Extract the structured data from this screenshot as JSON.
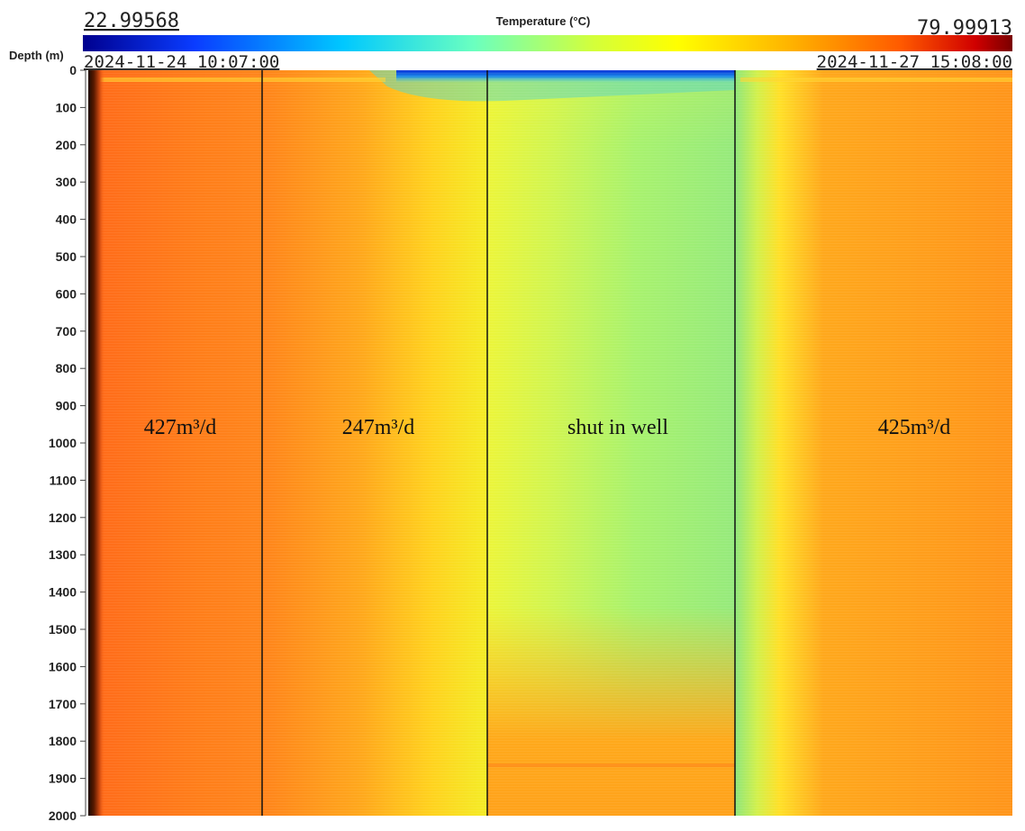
{
  "colorbar": {
    "title": "Temperature (°C)",
    "min_label": "22.99568",
    "max_label": "79.99913",
    "min_value": 22.99568,
    "max_value": 79.99913,
    "colormap": [
      "#00008f",
      "#0040ff",
      "#00c0ff",
      "#60ffb0",
      "#c0ff40",
      "#ffff00",
      "#ffc000",
      "#ff6000",
      "#e00000",
      "#7a0000"
    ]
  },
  "time_axis": {
    "start_label": "2024-11-24 10:07:00",
    "end_label": "2024-11-27 15:08:00"
  },
  "chart_data": {
    "type": "heatmap",
    "title": "",
    "xlabel": "",
    "ylabel": "Depth (m)",
    "x_range": [
      "2024-11-24 10:07:00",
      "2024-11-27 15:08:00"
    ],
    "y_range": [
      0,
      2000
    ],
    "y_inverted": true,
    "y_ticks": [
      0,
      100,
      200,
      300,
      400,
      500,
      600,
      700,
      800,
      900,
      1000,
      1100,
      1200,
      1300,
      1400,
      1500,
      1600,
      1700,
      1800,
      1900,
      2000
    ],
    "grid": false,
    "period_labels": [
      "427m³/d",
      "247m³/d",
      "shut in well",
      "425m³/d"
    ],
    "period_boundaries_fraction": [
      0.193,
      0.438,
      0.707
    ]
  }
}
